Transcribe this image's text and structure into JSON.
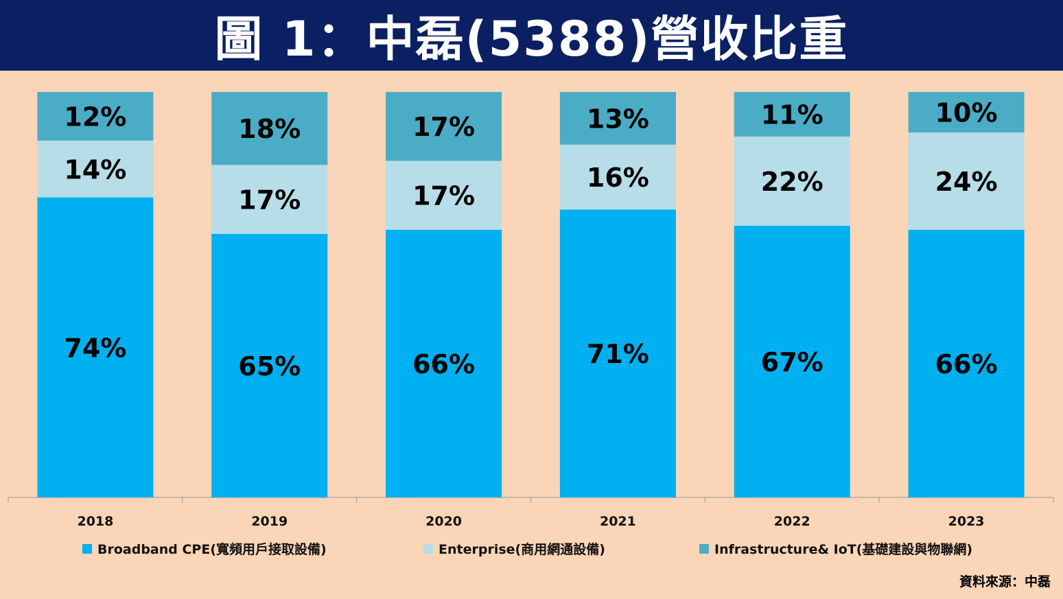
{
  "title": "圖 1：中磊(5388)營收比重",
  "source": "資料來源：中磊",
  "colors": {
    "background": "#fad5b7",
    "title_bar": "#0b2063",
    "broadband": "#00b0f0",
    "enterprise": "#b7dde8",
    "infrastructure": "#4bacc6"
  },
  "chart_data": {
    "type": "bar",
    "stacked": true,
    "categories": [
      "2018",
      "2019",
      "2020",
      "2021",
      "2022",
      "2023"
    ],
    "ylim": [
      0,
      100
    ],
    "grid": false,
    "legend_position": "bottom",
    "series": [
      {
        "name": "Broadband CPE(寬頻用戶接取設備)",
        "color": "#00b0f0",
        "values": [
          74,
          65,
          66,
          71,
          67,
          66
        ],
        "labels": [
          "74%",
          "65%",
          "66%",
          "71%",
          "67%",
          "66%"
        ]
      },
      {
        "name": "Enterprise(商用網通設備)",
        "color": "#b7dde8",
        "values": [
          14,
          17,
          17,
          16,
          22,
          24
        ],
        "labels": [
          "14%",
          "17%",
          "17%",
          "16%",
          "22%",
          "24%"
        ]
      },
      {
        "name": "Infrastructure& IoT(基礎建設與物聯網)",
        "color": "#4bacc6",
        "values": [
          12,
          18,
          17,
          13,
          11,
          10
        ],
        "labels": [
          "12%",
          "18%",
          "17%",
          "13%",
          "11%",
          "10%"
        ]
      }
    ]
  }
}
